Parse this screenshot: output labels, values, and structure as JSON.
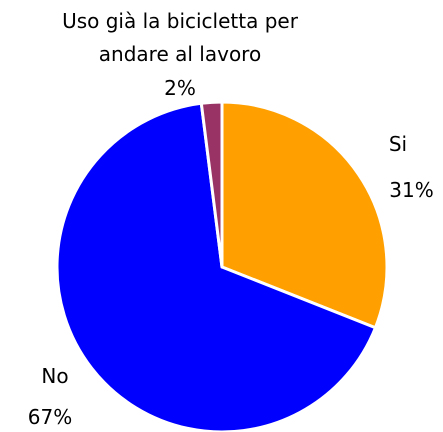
{
  "chart_data": {
    "type": "pie",
    "categories": [
      "Si",
      "No",
      "Uso già la bicicletta per andare al lavoro"
    ],
    "values": [
      31,
      67,
      2
    ],
    "value_labels": [
      "31%",
      "67%",
      "2%"
    ],
    "colors": [
      "#ffa000",
      "#0000ff",
      "#993366"
    ]
  }
}
